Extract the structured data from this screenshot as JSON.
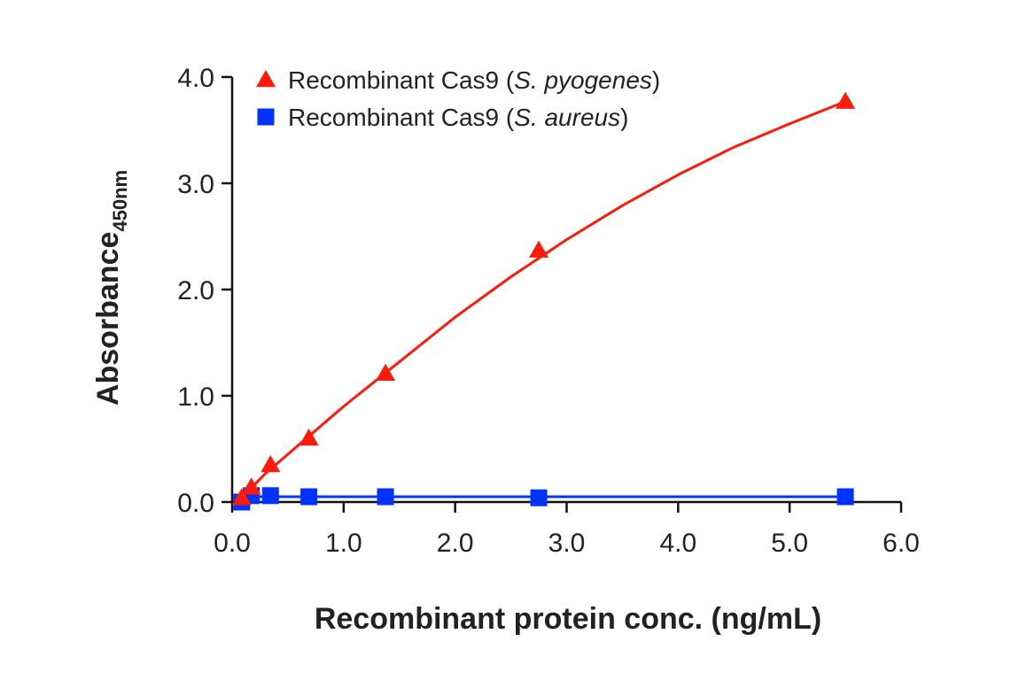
{
  "chart_data": {
    "type": "line",
    "title": "",
    "xlabel": "Recombinant protein conc. (ng/mL)",
    "ylabel": {
      "main": "Absorbance",
      "subscript": "450nm"
    },
    "xlim": [
      0,
      6
    ],
    "ylim": [
      0,
      4
    ],
    "xticks": [
      {
        "value": 0,
        "label": "0.0"
      },
      {
        "value": 1,
        "label": "1.0"
      },
      {
        "value": 2,
        "label": "2.0"
      },
      {
        "value": 3,
        "label": "3.0"
      },
      {
        "value": 4,
        "label": "4.0"
      },
      {
        "value": 5,
        "label": "5.0"
      },
      {
        "value": 6,
        "label": "6.0"
      }
    ],
    "yticks": [
      {
        "value": 0,
        "label": "0.0"
      },
      {
        "value": 1,
        "label": "1.0"
      },
      {
        "value": 2,
        "label": "2.0"
      },
      {
        "value": 3,
        "label": "3.0"
      },
      {
        "value": 4,
        "label": "4.0"
      }
    ],
    "legend_position": "top-left",
    "series": [
      {
        "name": "Recombinant Cas9 (S. pyogenes)",
        "legend_prefix": "Recombinant Cas9 (",
        "legend_italic": "S. pyogenes",
        "legend_suffix": ")",
        "marker": "triangle",
        "color": "#ff1a0a",
        "x": [
          0.086,
          0.172,
          0.344,
          0.688,
          1.375,
          2.75,
          5.5
        ],
        "y": [
          0.04,
          0.14,
          0.35,
          0.6,
          1.21,
          2.37,
          3.77
        ],
        "fit": [
          [
            0.086,
            0.04
          ],
          [
            0.3,
            0.27
          ],
          [
            0.6,
            0.54
          ],
          [
            1.0,
            0.9
          ],
          [
            1.5,
            1.32
          ],
          [
            2.0,
            1.74
          ],
          [
            2.5,
            2.12
          ],
          [
            3.0,
            2.47
          ],
          [
            3.5,
            2.79
          ],
          [
            4.0,
            3.08
          ],
          [
            4.5,
            3.34
          ],
          [
            5.0,
            3.56
          ],
          [
            5.5,
            3.77
          ]
        ]
      },
      {
        "name": "Recombinant Cas9 (S. aureus)",
        "legend_prefix": "Recombinant Cas9 (",
        "legend_italic": "S. aureus",
        "legend_suffix": ")",
        "marker": "square",
        "color": "#0033ff",
        "x": [
          0.086,
          0.172,
          0.344,
          0.688,
          1.375,
          2.75,
          5.5
        ],
        "y": [
          0.0,
          0.06,
          0.06,
          0.05,
          0.05,
          0.04,
          0.05
        ],
        "fit": [
          [
            0.086,
            0.05
          ],
          [
            5.5,
            0.05
          ]
        ]
      }
    ]
  }
}
